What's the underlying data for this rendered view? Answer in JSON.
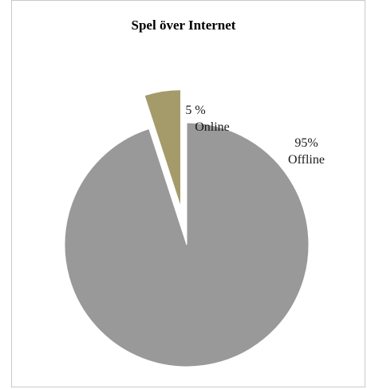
{
  "chart_data": {
    "type": "pie",
    "title": "Spel över Internet",
    "slices": [
      {
        "label": "Offline",
        "value_label": "95%",
        "value": 95,
        "color": "#999999"
      },
      {
        "label": "Online",
        "value_label": "5 %",
        "value": 5,
        "color": "#a59b6a"
      }
    ],
    "exploded_slice": "Online"
  }
}
